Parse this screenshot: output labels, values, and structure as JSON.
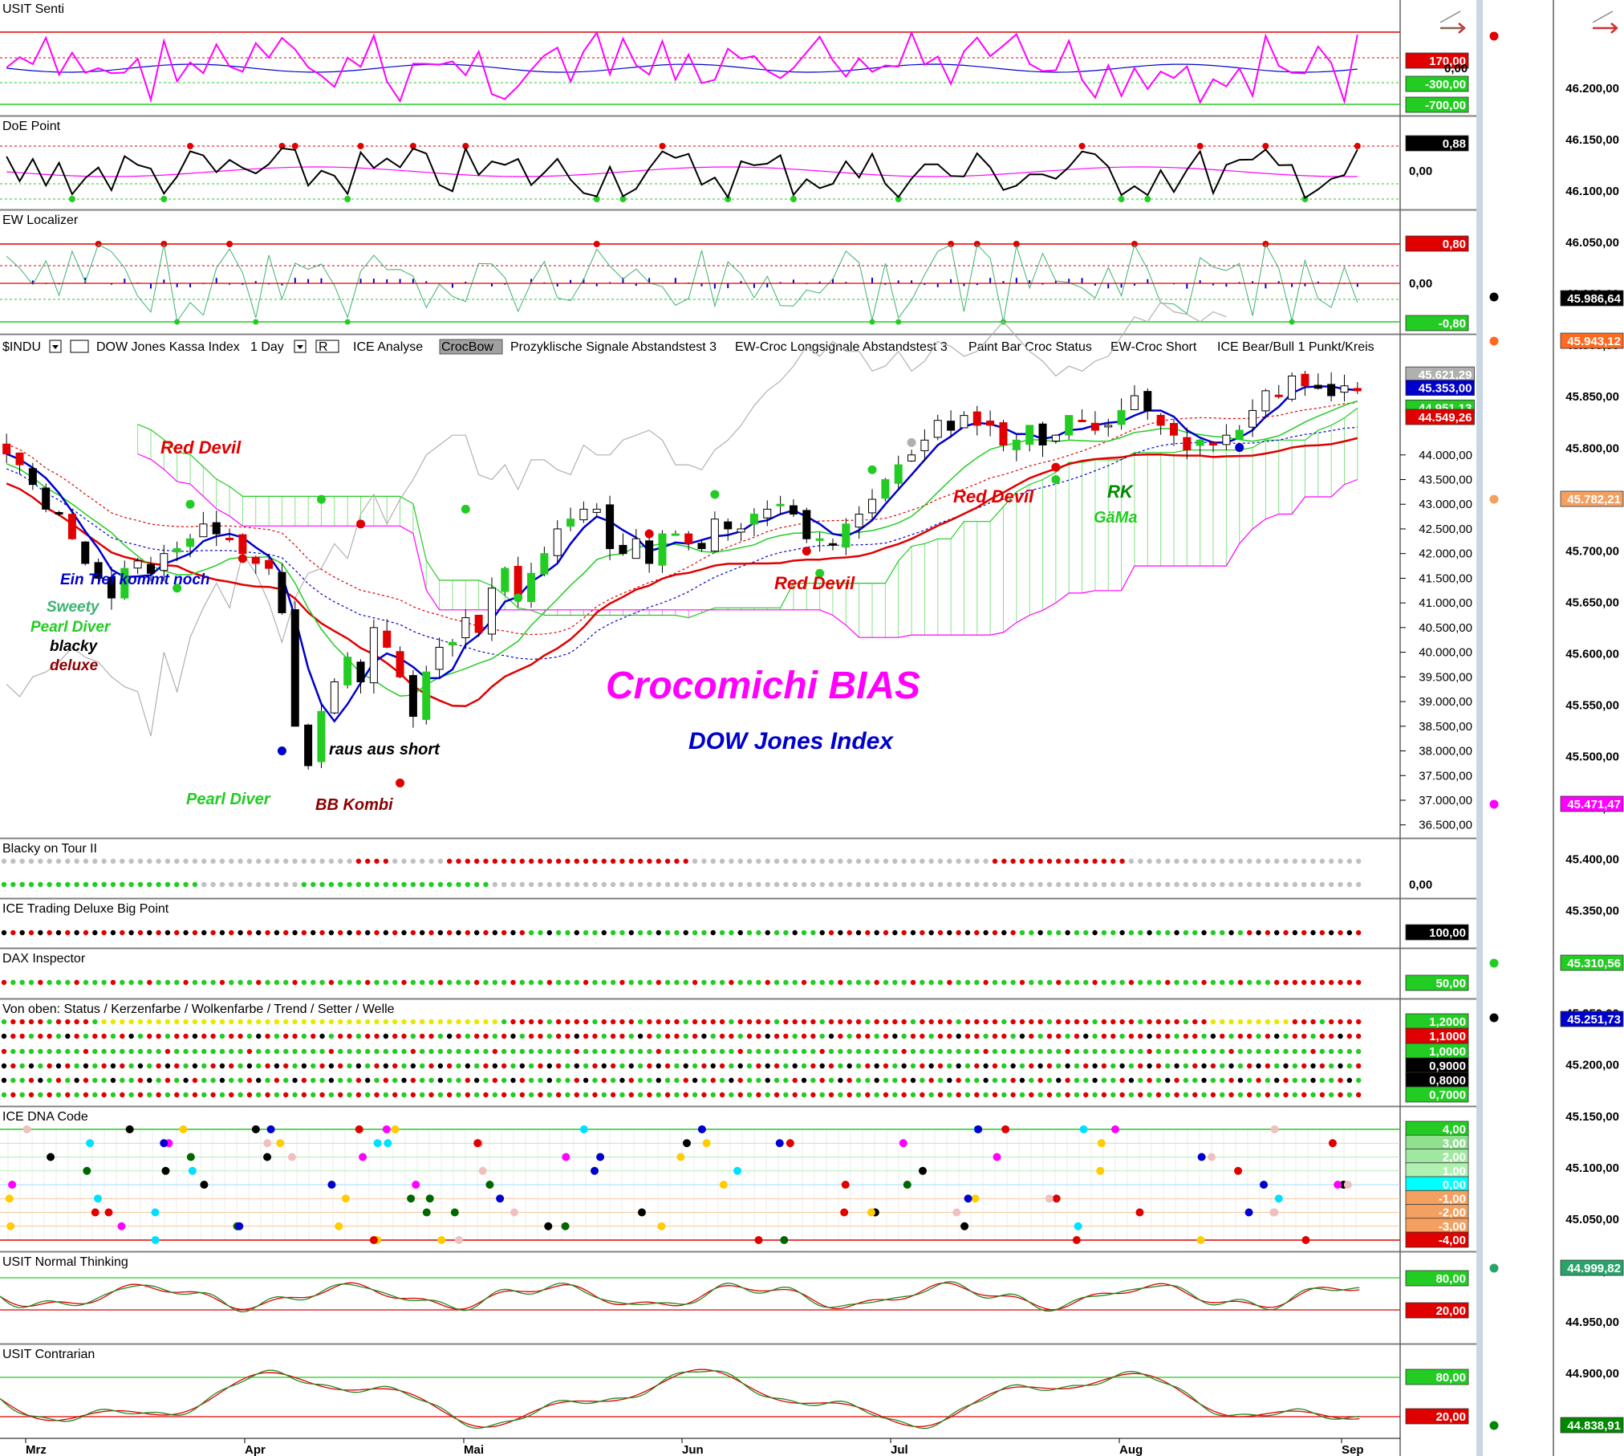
{
  "chart_data": {
    "type": "candlestick",
    "title": "Crocomichi BIAS",
    "subtitle": "DOW Jones Index",
    "toolbar": {
      "symbol": "$INDU",
      "name": "DOW Jones Kassa Index",
      "period": "1 Day",
      "r_btn": "R",
      "items": [
        "ICE Analyse",
        "CrocBow",
        "Prozyklische Signale Abstandstest 3",
        "EW-Croc Longsignale Abstandstest 3",
        "Paint Bar Croc Status",
        "EW-Croc Short",
        "ICE Bear/Bull 1 Punkt/Kreis"
      ]
    },
    "x_months": [
      "Mrz",
      "Apr",
      "Mai",
      "Jun",
      "Jul",
      "Aug",
      "Sep"
    ],
    "main_y_ticks": [
      "44.000,00",
      "43.500,00",
      "43.000,00",
      "42.500,00",
      "42.000,00",
      "41.500,00",
      "41.000,00",
      "40.500,00",
      "40.000,00",
      "39.500,00",
      "39.000,00",
      "38.500,00",
      "38.000,00",
      "37.500,00",
      "37.000,00",
      "36.500,00"
    ],
    "ylim": [
      36300,
      45900
    ],
    "main_badges": [
      {
        "text": "45.621,29",
        "color": "#b0b0b0"
      },
      {
        "text": "45.353,00",
        "color": "#0000cc"
      },
      {
        "text": "44.951,13",
        "color": "#22cc22"
      },
      {
        "text": "44.549,26",
        "color": "#e00000"
      }
    ],
    "closes": [
      44020,
      43800,
      43400,
      42900,
      42800,
      42300,
      41800,
      41500,
      41100,
      41700,
      41850,
      41600,
      42000,
      42100,
      42300,
      42600,
      42400,
      42300,
      42000,
      41800,
      41700,
      40800,
      38500,
      37700,
      38800,
      39400,
      39900,
      39400,
      40500,
      40100,
      39500,
      38700,
      39600,
      40100,
      40200,
      40700,
      40400,
      41300,
      41700,
      41100,
      41600,
      42000,
      42500,
      42700,
      42900,
      42900,
      42100,
      42000,
      42300,
      41800,
      42400,
      42400,
      42200,
      42100,
      42700,
      42500,
      42500,
      42800,
      42900,
      43000,
      42800,
      42300,
      42300,
      42200,
      42600,
      42800,
      43100,
      43500,
      43800,
      44000,
      44300,
      44700,
      44500,
      44800,
      44600,
      44600,
      44200,
      44300,
      44600,
      44200,
      44400,
      44800,
      44700,
      44500,
      44600,
      44900,
      45200,
      44900,
      44600,
      44400,
      44100,
      44300,
      44200,
      44400,
      44500,
      44900,
      45300,
      45200,
      45600,
      45400,
      45350,
      45200,
      45400,
      45300
    ]
  },
  "right_ticks": [
    "46.200,00",
    "46.150,00",
    "46.100,00",
    "46.050,00",
    "46.000,00",
    "45.900,00",
    "45.850,00",
    "45.800,00",
    "45.750,00",
    "45.700,00",
    "45.650,00",
    "45.600,00",
    "45.550,00",
    "45.500,00",
    "45.450,00",
    "45.400,00",
    "45.350,00",
    "45.300,00",
    "45.250,00",
    "45.200,00",
    "45.150,00",
    "45.100,00",
    "45.050,00",
    "45.000,00",
    "44.950,00",
    "44.900,00",
    "44.850,00"
  ],
  "right_badges": [
    {
      "text": "45.986,64",
      "color": "#000000"
    },
    {
      "text": "45.943,12",
      "color": "#ff6a20"
    },
    {
      "text": "45.782,21",
      "color": "#f3a060"
    },
    {
      "text": "45.471,47",
      "color": "#ff00ff"
    },
    {
      "text": "45.310,56",
      "color": "#22cc22"
    },
    {
      "text": "45.251,73",
      "color": "#0000cc"
    },
    {
      "text": "44.999,82",
      "color": "#2aa36a"
    },
    {
      "text": "44.838,91",
      "color": "#008800"
    }
  ],
  "annotations": [
    {
      "text": "Red Devil",
      "color": "#e00000"
    },
    {
      "text": "Ein Tief kommt noch",
      "color": "#0000cc"
    },
    {
      "text": "Sweety",
      "color": "#3cb371"
    },
    {
      "text": "Pearl Diver",
      "color": "#22cc22"
    },
    {
      "text": "blacky",
      "color": "#000000"
    },
    {
      "text": "deluxe",
      "color": "#8b0000"
    },
    {
      "text": "raus aus short",
      "color": "#000000"
    },
    {
      "text": "Pearl Diver",
      "color": "#22cc22"
    },
    {
      "text": "BB Kombi",
      "color": "#8b0000"
    },
    {
      "text": "Red Devil",
      "color": "#e00000"
    },
    {
      "text": "Red Devil",
      "color": "#e00000"
    },
    {
      "text": "RK",
      "color": "#008800"
    },
    {
      "text": "GäMa",
      "color": "#22cc22"
    }
  ],
  "panels": {
    "usit_senti": {
      "label": "USIT Senti",
      "badges": [
        "170,00",
        "0,00",
        "-300,00",
        "-700,00"
      ]
    },
    "doe_point": {
      "label": "DoE Point",
      "badges": [
        "0,88",
        "0,00"
      ]
    },
    "ew_localizer": {
      "label": "EW Localizer",
      "badges": [
        "0,80",
        "0,00",
        "-0,80"
      ]
    },
    "blacky": {
      "label": "Blacky on Tour II",
      "badges": [
        "0,00"
      ]
    },
    "ice_trading": {
      "label": "ICE Trading Deluxe Big Point",
      "badges": [
        "100,00"
      ]
    },
    "dax_inspector": {
      "label": "DAX Inspector",
      "badges": [
        "50,00"
      ]
    },
    "von_oben": {
      "label": "Von oben: Status / Kerzenfarbe / Wolkenfarbe / Trend / Setter / Welle",
      "badges": [
        "1,2000",
        "1,1000",
        "1,0000",
        "0,9000",
        "0,8000",
        "0,7000"
      ]
    },
    "ice_dna": {
      "label": "ICE DNA Code",
      "badges": [
        "4,00",
        "3,00",
        "2,00",
        "1,00",
        "0,00",
        "-1,00",
        "-2,00",
        "-3,00",
        "-4,00"
      ]
    },
    "usit_normal": {
      "label": "USIT Normal Thinking",
      "badges": [
        "80,00",
        "20,00"
      ]
    },
    "usit_contrarian": {
      "label": "USIT Contrarian",
      "badges": [
        "80,00",
        "20,00"
      ]
    }
  },
  "colors": {
    "red": "#e00000",
    "green": "#22cc22",
    "blue": "#0000cc",
    "magenta": "#ff00ff",
    "gray": "#b0b0b0"
  }
}
